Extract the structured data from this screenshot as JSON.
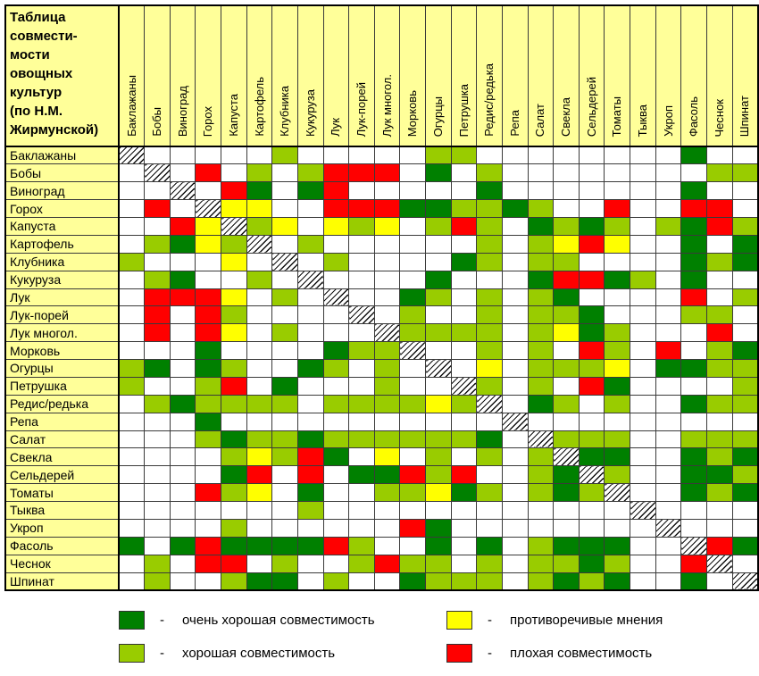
{
  "chart_data": {
    "type": "heatmap",
    "title": "Таблица\nсовмести-\nмости\nовощных\nкультур\n(по Н.М.\nЖирмунской)",
    "axes_note": "rows and columns share the same crop list",
    "crops": [
      "Баклажаны",
      "Бобы",
      "Виноград",
      "Горох",
      "Капуста",
      "Картофель",
      "Клубника",
      "Кукуруза",
      "Лук",
      "Лук-порей",
      "Лук многол.",
      "Морковь",
      "Огурцы",
      "Петрушка",
      "Редис/редька",
      "Репа",
      "Салат",
      "Свекла",
      "Сельдерей",
      "Томаты",
      "Тыква",
      "Укроп",
      "Фасоль",
      "Чеснок",
      "Шпинат"
    ],
    "matrix": [
      "SWWWWWLWWWWWLLWWWWWWWWDWW",
      "WSWRWLWLRRRWDWLWWWWWWWWLL",
      "WWSWRDWDRWWWWWDWWWWWWWDWW",
      "WRWSYYWWRRRDDLLDLWWRWWRRW",
      "WWRYSLYWYLYWLRLWDLDLWLDRL",
      "WLDYLSWLWWWWWWLWLYRYWWDWD",
      "LWWWYWSWLWWWWDLWLLWWWWDLD",
      "WLDWWLWSWWWWDWWWDRRDLWDWW",
      "WRRRYWLWSWWDLWLWLDWWWWRWL",
      "WRWRLWWWWSWLWWLWLLDWWWLLW",
      "WRWRYWLWWWSLLLLWLYDLWWWRW",
      "WWWDWWWWDLLSWWLWLWRLWRWLD",
      "LDWDLWWDLWLWSWYWLLLYWDDLL",
      "LWWLRWDWWWLWWSLWLWRDWWWWL",
      "WLDLLLLWLLLLYLSWDLWLWWDLL",
      "WWWDWWWWWWWWWWWSWWWWWWWWW",
      "WWWLDLLDLLLLLLDWSLLLWWLLL",
      "WWWWLYLRDWYWLWLWLSDDWWDLD",
      "WWWWDRWRWDDRLRWWLDSLWWDDL",
      "WWWRLYWDWWLLYDLWLDLSWWDLD",
      "WWWWWWWLWWWWWWWWWWWWSWWWW",
      "WWWWLWWWWWWRDWWWWWWWWSWWW",
      "DWDRDDDDRLWWDWDWLDDDWWSRD",
      "WLWRRWLWWLRLLWLWLLDLWWRSW",
      "WLWWLDDWLWWDLLLWLDLDWWDWS"
    ],
    "colors": {
      "D": "#008000",
      "L": "#99CC00",
      "Y": "#FFFF00",
      "R": "#FF0000",
      "W": "#FFFFFF",
      "header_bg": "#FFFF99"
    },
    "dash": "-",
    "legend": [
      {
        "code": "D",
        "label": "очень хорошая совместимость"
      },
      {
        "code": "Y",
        "label": "противоречивые мнения"
      },
      {
        "code": "L",
        "label": "хорошая совместимость"
      },
      {
        "code": "R",
        "label": "плохая совместимость"
      }
    ]
  }
}
